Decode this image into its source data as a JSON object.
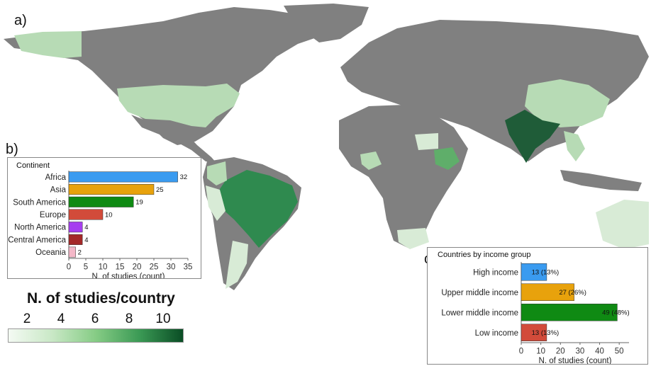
{
  "panels": {
    "a": "a)",
    "b": "b)",
    "c": "c)"
  },
  "legend": {
    "title": "N. of studies/country",
    "ticks": [
      "2",
      "4",
      "6",
      "8",
      "10"
    ],
    "colors": [
      "#f4faf3",
      "#c9e8c6",
      "#86cc85",
      "#3b9a55",
      "#0a4d25"
    ]
  },
  "map": {
    "ocean_color": "#ffffff",
    "no_data_color": "#808080",
    "highlighted": [
      "India",
      "Brazil",
      "Ethiopia",
      "United States",
      "China",
      "Colombia"
    ]
  },
  "chart_data": [
    {
      "id": "b",
      "type": "bar",
      "orientation": "horizontal",
      "title": "Continent",
      "categories": [
        "Africa",
        "Asia",
        "South America",
        "Europe",
        "North America",
        "Central America",
        "Oceania"
      ],
      "values": [
        32,
        25,
        19,
        10,
        4,
        4,
        2
      ],
      "value_labels": [
        "32",
        "25",
        "19",
        "10",
        "4",
        "4",
        "2"
      ],
      "colors": [
        "#3a9bf0",
        "#e8a20c",
        "#0f8a13",
        "#d24b3a",
        "#a63ef0",
        "#a42828",
        "#f4b8c8"
      ],
      "xlabel": "N. of studies (count)",
      "xlim": [
        0,
        35
      ],
      "xticks": [
        "0",
        "5",
        "10",
        "15",
        "20",
        "25",
        "30",
        "35"
      ]
    },
    {
      "id": "c",
      "type": "bar",
      "orientation": "horizontal",
      "title": "Countries by income group",
      "categories": [
        "High income",
        "Upper middle income",
        "Lower middle income",
        "Low income"
      ],
      "values": [
        13,
        27,
        49,
        13
      ],
      "value_labels": [
        "13 (13%)",
        "27 (26%)",
        "49 (48%)",
        "13 (13%)"
      ],
      "colors": [
        "#3a9bf0",
        "#e8a20c",
        "#0f8a13",
        "#d24b3a"
      ],
      "xlabel": "N. of studies (count)",
      "xlim": [
        0,
        55
      ],
      "xticks": [
        "0",
        "10",
        "20",
        "30",
        "40",
        "50"
      ]
    }
  ]
}
